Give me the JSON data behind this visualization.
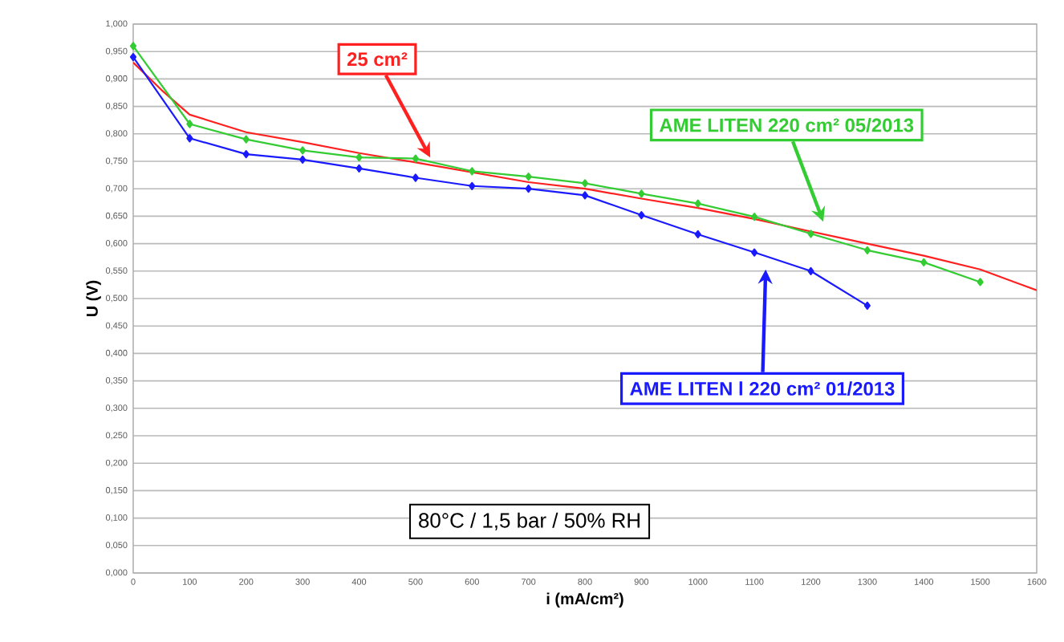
{
  "chart_data": {
    "type": "line",
    "xlabel": "i (mA/cm²)",
    "ylabel": "U (V)",
    "xlim": [
      0,
      1600
    ],
    "xticks": [
      0,
      100,
      200,
      300,
      400,
      500,
      600,
      700,
      800,
      900,
      1000,
      1100,
      1200,
      1300,
      1400,
      1500,
      1600
    ],
    "ylim": [
      0,
      1
    ],
    "yticks": [
      {
        "value": 0,
        "label": "0,000"
      },
      {
        "value": 0.05,
        "label": "0,050"
      },
      {
        "value": 0.1,
        "label": "0,100"
      },
      {
        "value": 0.15,
        "label": "0,150"
      },
      {
        "value": 0.2,
        "label": "0,200"
      },
      {
        "value": 0.25,
        "label": "0,250"
      },
      {
        "value": 0.3,
        "label": "0,300"
      },
      {
        "value": 0.35,
        "label": "0,350"
      },
      {
        "value": 0.4,
        "label": "0,400"
      },
      {
        "value": 0.45,
        "label": "0,450"
      },
      {
        "value": 0.5,
        "label": "0,500"
      },
      {
        "value": 0.55,
        "label": "0,550"
      },
      {
        "value": 0.6,
        "label": "0,600"
      },
      {
        "value": 0.65,
        "label": "0,650"
      },
      {
        "value": 0.7,
        "label": "0,700"
      },
      {
        "value": 0.75,
        "label": "0,750"
      },
      {
        "value": 0.8,
        "label": "0,800"
      },
      {
        "value": 0.85,
        "label": "0,850"
      },
      {
        "value": 0.9,
        "label": "0,900"
      },
      {
        "value": 0.95,
        "label": "0,950"
      },
      {
        "value": 1,
        "label": "1,000"
      }
    ],
    "grid": "y",
    "legend": false,
    "series": [
      {
        "name": "25 cm²",
        "color": "#ff2020",
        "marker": "none",
        "x": [
          0,
          50,
          100,
          200,
          300,
          400,
          500,
          600,
          700,
          800,
          900,
          1000,
          1100,
          1200,
          1300,
          1400,
          1500,
          1600
        ],
        "values": [
          0.93,
          0.88,
          0.835,
          0.803,
          0.785,
          0.765,
          0.748,
          0.73,
          0.712,
          0.7,
          0.682,
          0.665,
          0.645,
          0.622,
          0.6,
          0.578,
          0.553,
          0.515
        ]
      },
      {
        "name": "AME LITEN 220 cm² 05/2013",
        "color": "#33cc33",
        "marker": "diamond",
        "x": [
          0,
          100,
          200,
          300,
          400,
          500,
          600,
          700,
          800,
          900,
          1000,
          1100,
          1200,
          1300,
          1400,
          1500
        ],
        "values": [
          0.96,
          0.818,
          0.79,
          0.77,
          0.757,
          0.755,
          0.732,
          0.722,
          0.71,
          0.691,
          0.673,
          0.649,
          0.618,
          0.588,
          0.566,
          0.53
        ]
      },
      {
        "name": "AME LITEN l 220 cm² 01/2013",
        "color": "#1a1aff",
        "marker": "diamond",
        "x": [
          0,
          100,
          200,
          300,
          400,
          500,
          600,
          700,
          800,
          900,
          1000,
          1100,
          1200,
          1300
        ],
        "values": [
          0.94,
          0.792,
          0.763,
          0.753,
          0.737,
          0.72,
          0.705,
          0.7,
          0.688,
          0.652,
          0.617,
          0.584,
          0.55,
          0.487
        ]
      }
    ],
    "annotations": [
      "80°C / 1,5 bar / 50% RH"
    ]
  }
}
